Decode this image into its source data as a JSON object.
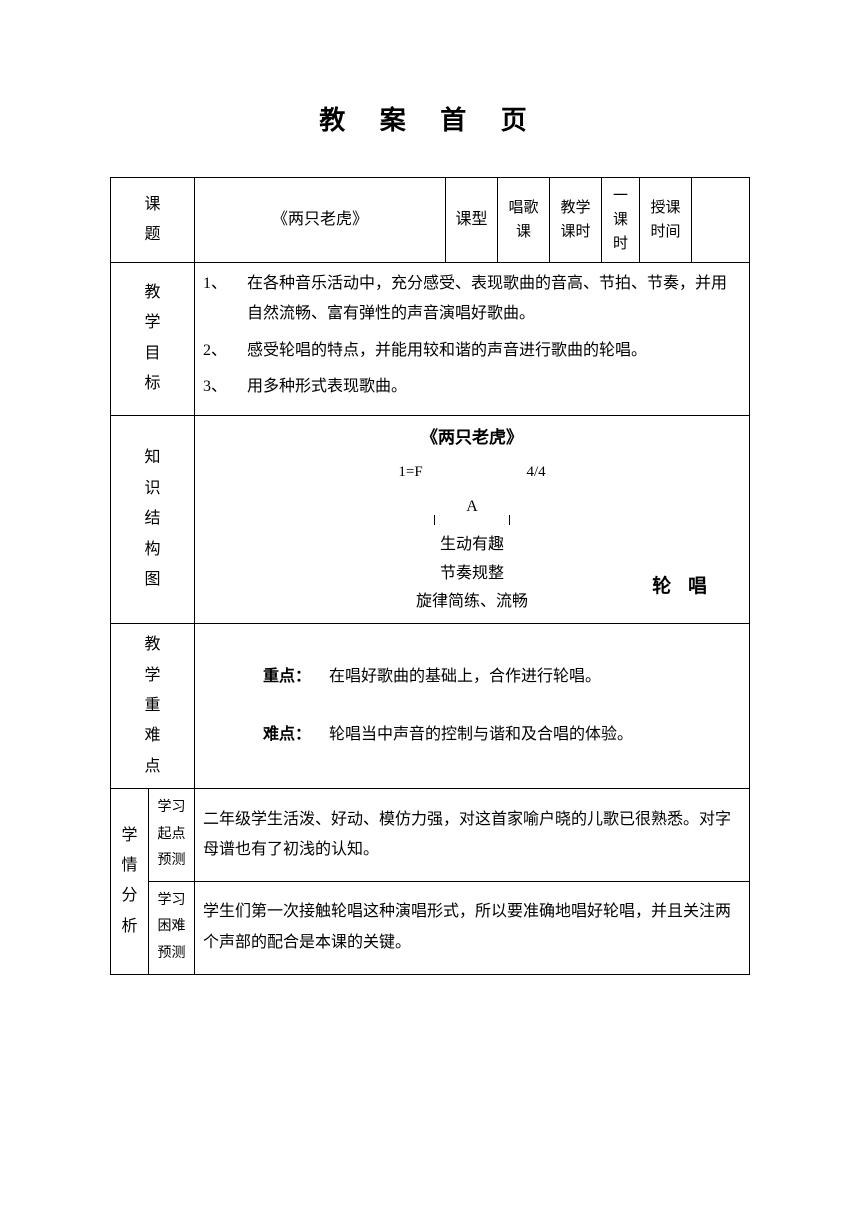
{
  "page_title": "教 案 首 页",
  "row1": {
    "label_topic": "课题",
    "topic_value": "《两只老虎》",
    "label_type": "课型",
    "type_value": "唱歌课",
    "label_period": "教学课时",
    "period_value": "一课时",
    "label_time": "授课时间",
    "time_value": ""
  },
  "goals": {
    "label": "教学目标",
    "items": [
      {
        "num": "1、",
        "text": "在各种音乐活动中，充分感受、表现歌曲的音高、节拍、节奏，并用自然流畅、富有弹性的声音演唱好歌曲。"
      },
      {
        "num": "2、",
        "text": "感受轮唱的特点，并能用较和谐的声音进行歌曲的轮唱。"
      },
      {
        "num": "3、",
        "text": "用多种形式表现歌曲。"
      }
    ]
  },
  "structure": {
    "label": "知识结构图",
    "title": "《两只老虎》",
    "key_left": "1=F",
    "key_right": "4/4",
    "form_letter": "A",
    "line1": "生动有趣",
    "line2": "节奏规整",
    "line3": "旋律简练、流畅",
    "round_label": "轮 唱"
  },
  "keypoints": {
    "label": "教学重难点",
    "zhong_label": "重点：",
    "zhong_text": "在唱好歌曲的基础上，合作进行轮唱。",
    "nan_label": "难点：",
    "nan_text": "轮唱当中声音的控制与谐和及合唱的体验。"
  },
  "analysis": {
    "label": "学情分析",
    "start_label": "学习起点预测",
    "start_text": "二年级学生活泼、好动、模仿力强，对这首家喻户晓的儿歌已很熟悉。对字母谱也有了初浅的认知。",
    "diff_label": "学习困难预测",
    "diff_text": "学生们第一次接触轮唱这种演唱形式，所以要准确地唱好轮唱，并且关注两个声部的配合是本课的关键。"
  },
  "colors": {
    "text": "#000000",
    "border": "#000000",
    "background": "#ffffff"
  },
  "typography": {
    "base_fontsize_pt": 12,
    "title_fontsize_pt": 20,
    "font_family": "SimSun"
  }
}
